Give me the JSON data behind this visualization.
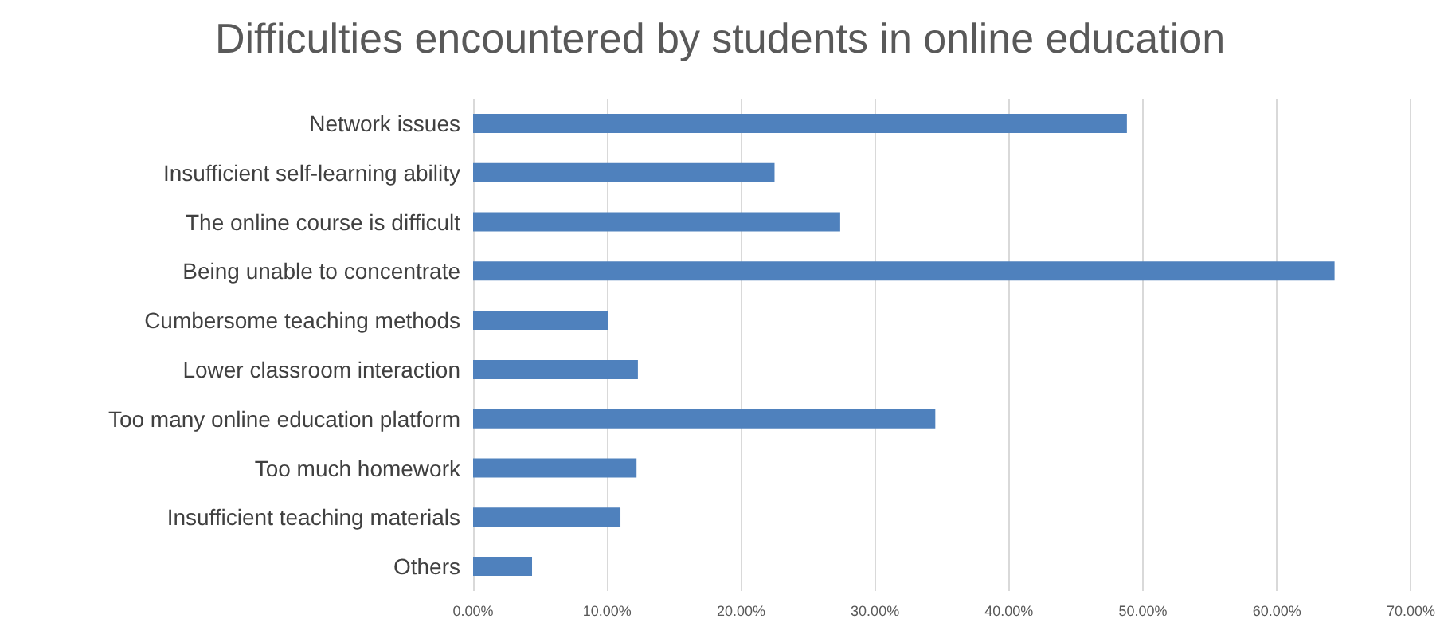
{
  "chart_data": {
    "type": "bar",
    "orientation": "horizontal",
    "title": "Difficulties encountered by students in online education",
    "categories": [
      "Network issues",
      "Insufficient self-learning ability",
      "The online course is difficult",
      "Being unable to concentrate",
      "Cumbersome teaching methods",
      "Lower classroom interaction",
      "Too many online education platform",
      "Too much homework",
      "Insufficient teaching materials",
      "Others"
    ],
    "values": [
      48.8,
      22.5,
      27.4,
      64.3,
      10.1,
      12.3,
      34.5,
      12.2,
      11.0,
      4.4
    ],
    "color": "#4f81bd",
    "xlim": [
      0,
      70
    ],
    "xticks": [
      {
        "value": 0,
        "label": "0.00%"
      },
      {
        "value": 10,
        "label": "10.00%"
      },
      {
        "value": 20,
        "label": "20.00%"
      },
      {
        "value": 30,
        "label": "30.00%"
      },
      {
        "value": 40,
        "label": "40.00%"
      },
      {
        "value": 50,
        "label": "50.00%"
      },
      {
        "value": 60,
        "label": "60.00%"
      },
      {
        "value": 70,
        "label": "70.00%"
      }
    ],
    "grid": "x"
  }
}
